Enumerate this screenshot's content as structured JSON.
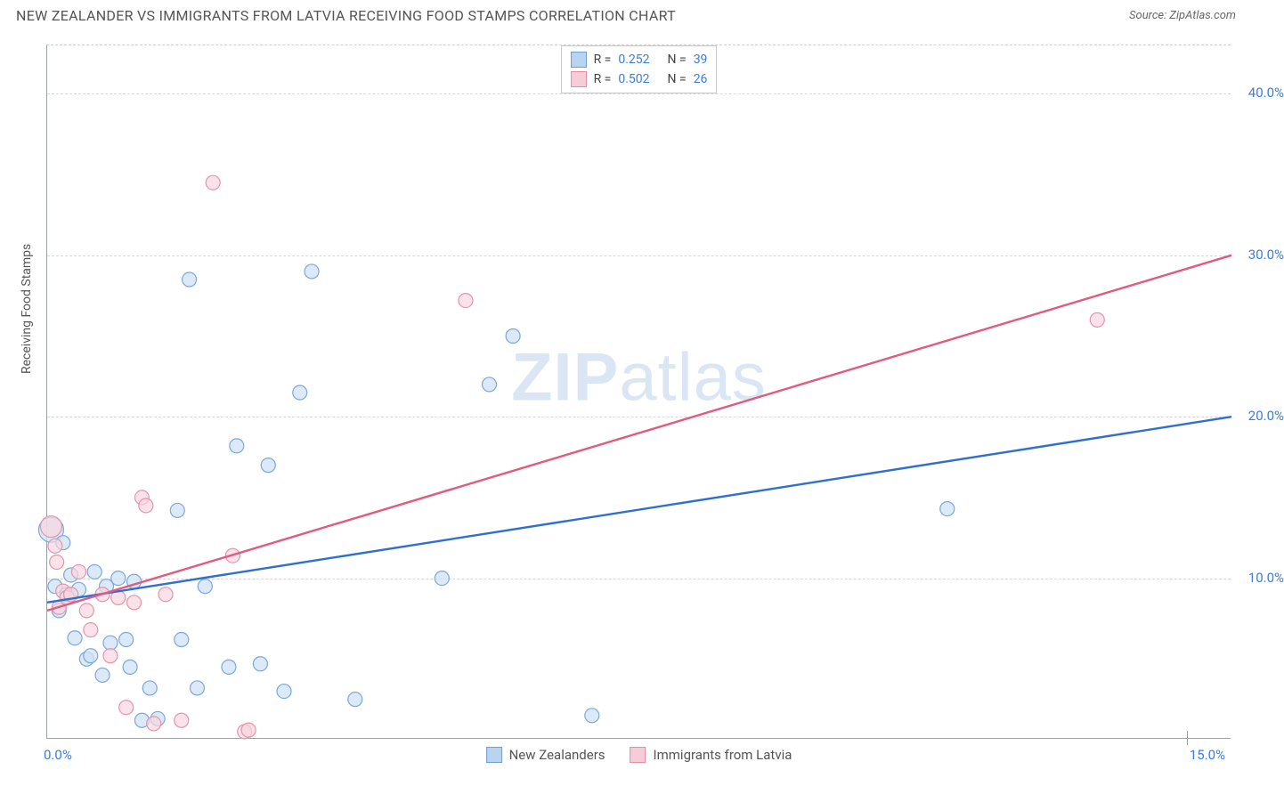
{
  "title": "NEW ZEALANDER VS IMMIGRANTS FROM LATVIA RECEIVING FOOD STAMPS CORRELATION CHART",
  "source": "Source: ZipAtlas.com",
  "watermark_a": "ZIP",
  "watermark_b": "atlas",
  "chart": {
    "type": "scatter",
    "ylabel": "Receiving Food Stamps",
    "background_color": "#ffffff",
    "grid_color": "#d8d8d8",
    "axis_color": "#9aa0a6",
    "xlim": [
      0,
      15
    ],
    "ylim": [
      0,
      43
    ],
    "x_ticks": [
      {
        "val": 0,
        "label": "0.0%"
      },
      {
        "val": 15,
        "label": "15.0%"
      }
    ],
    "y_ticks": [
      {
        "val": 10,
        "label": "10.0%"
      },
      {
        "val": 20,
        "label": "20.0%"
      },
      {
        "val": 30,
        "label": "30.0%"
      },
      {
        "val": 40,
        "label": "40.0%"
      }
    ],
    "series": [
      {
        "name": "New Zealanders",
        "color_fill": "#cfe1f5",
        "color_stroke": "#7aa8da",
        "swatch_fill": "#b9d4f0",
        "swatch_border": "#6b9fd6",
        "line_color": "#2f6fd0",
        "stats": {
          "R": "0.252",
          "N": "39"
        },
        "trend": {
          "x1": 0,
          "y1": 8.5,
          "x2": 15,
          "y2": 20.0
        },
        "marker_radius": 8,
        "marker_opacity": 0.75,
        "points": [
          {
            "x": 0.05,
            "y": 13.0,
            "r": 14
          },
          {
            "x": 0.1,
            "y": 9.5
          },
          {
            "x": 0.15,
            "y": 8.0
          },
          {
            "x": 0.2,
            "y": 12.2
          },
          {
            "x": 0.25,
            "y": 9.0
          },
          {
            "x": 0.3,
            "y": 10.2
          },
          {
            "x": 0.35,
            "y": 6.3
          },
          {
            "x": 0.4,
            "y": 9.3
          },
          {
            "x": 0.5,
            "y": 5.0
          },
          {
            "x": 0.55,
            "y": 5.2
          },
          {
            "x": 0.6,
            "y": 10.4
          },
          {
            "x": 0.7,
            "y": 4.0
          },
          {
            "x": 0.75,
            "y": 9.5
          },
          {
            "x": 0.8,
            "y": 6.0
          },
          {
            "x": 0.9,
            "y": 10.0
          },
          {
            "x": 1.0,
            "y": 6.2
          },
          {
            "x": 1.05,
            "y": 4.5
          },
          {
            "x": 1.1,
            "y": 9.8
          },
          {
            "x": 1.2,
            "y": 1.2
          },
          {
            "x": 1.3,
            "y": 3.2
          },
          {
            "x": 1.4,
            "y": 1.3
          },
          {
            "x": 1.65,
            "y": 14.2
          },
          {
            "x": 1.7,
            "y": 6.2
          },
          {
            "x": 1.8,
            "y": 28.5
          },
          {
            "x": 1.9,
            "y": 3.2
          },
          {
            "x": 2.0,
            "y": 9.5
          },
          {
            "x": 2.3,
            "y": 4.5
          },
          {
            "x": 2.4,
            "y": 18.2
          },
          {
            "x": 2.7,
            "y": 4.7
          },
          {
            "x": 2.8,
            "y": 17.0
          },
          {
            "x": 3.0,
            "y": 3.0
          },
          {
            "x": 3.2,
            "y": 21.5
          },
          {
            "x": 3.35,
            "y": 29.0
          },
          {
            "x": 3.9,
            "y": 2.5
          },
          {
            "x": 5.0,
            "y": 10.0
          },
          {
            "x": 5.6,
            "y": 22.0
          },
          {
            "x": 5.9,
            "y": 25.0
          },
          {
            "x": 6.9,
            "y": 1.5
          },
          {
            "x": 11.4,
            "y": 14.3
          }
        ]
      },
      {
        "name": "Immigrants from Latvia",
        "color_fill": "#f7d6df",
        "color_stroke": "#e694ab",
        "swatch_fill": "#f5cdd9",
        "swatch_border": "#e88ba3",
        "line_color": "#e05b7e",
        "stats": {
          "R": "0.502",
          "N": "26"
        },
        "trend": {
          "x1": 0,
          "y1": 8.0,
          "x2": 15,
          "y2": 30.0
        },
        "marker_radius": 8,
        "marker_opacity": 0.7,
        "points": [
          {
            "x": 0.05,
            "y": 13.2,
            "r": 12
          },
          {
            "x": 0.1,
            "y": 12.0
          },
          {
            "x": 0.12,
            "y": 11.0
          },
          {
            "x": 0.15,
            "y": 8.2
          },
          {
            "x": 0.2,
            "y": 9.2
          },
          {
            "x": 0.25,
            "y": 8.8
          },
          {
            "x": 0.3,
            "y": 9.0
          },
          {
            "x": 0.4,
            "y": 10.4
          },
          {
            "x": 0.5,
            "y": 8.0
          },
          {
            "x": 0.55,
            "y": 6.8
          },
          {
            "x": 0.7,
            "y": 9.0
          },
          {
            "x": 0.8,
            "y": 5.2
          },
          {
            "x": 0.9,
            "y": 8.8
          },
          {
            "x": 1.0,
            "y": 2.0
          },
          {
            "x": 1.1,
            "y": 8.5
          },
          {
            "x": 1.2,
            "y": 15.0
          },
          {
            "x": 1.25,
            "y": 14.5
          },
          {
            "x": 1.35,
            "y": 1.0
          },
          {
            "x": 1.5,
            "y": 9.0
          },
          {
            "x": 1.7,
            "y": 1.2
          },
          {
            "x": 2.1,
            "y": 34.5
          },
          {
            "x": 2.35,
            "y": 11.4
          },
          {
            "x": 2.5,
            "y": 0.5
          },
          {
            "x": 2.55,
            "y": 0.6
          },
          {
            "x": 5.3,
            "y": 27.2
          },
          {
            "x": 13.3,
            "y": 26.0
          }
        ]
      }
    ]
  }
}
